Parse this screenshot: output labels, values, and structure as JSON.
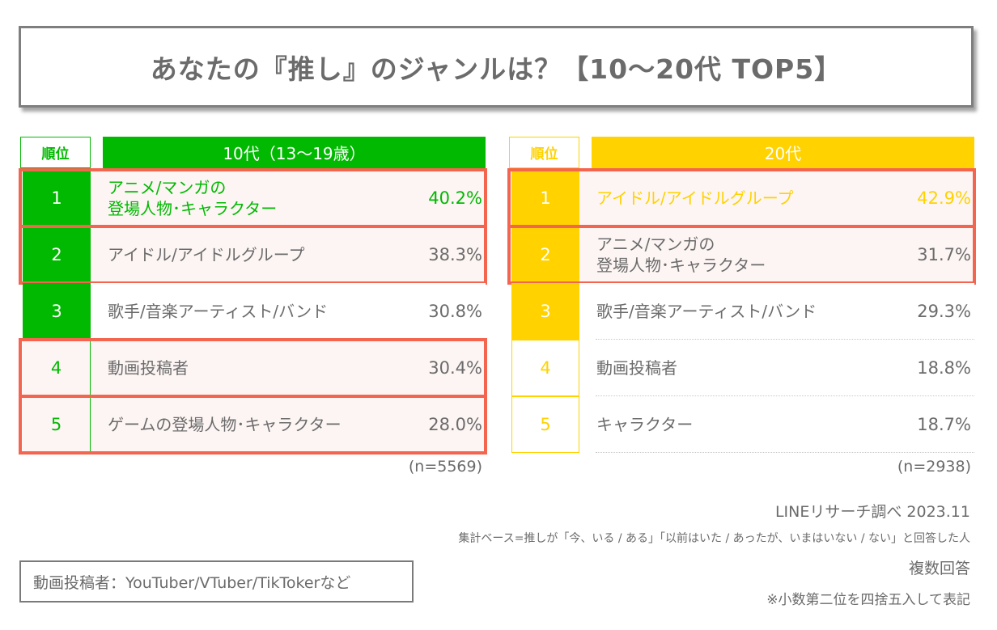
{
  "title": "あなたの『推し』のジャンルは？【10～20代 TOP5】",
  "colors": {
    "teens_accent": "#00b900",
    "twenties_accent": "#ffd200",
    "highlight_border": "#f4654f",
    "highlight_fill": "#fdf5f4",
    "text": "#6b6b6b"
  },
  "chart_data": {
    "type": "table",
    "title": "あなたの『推し』のジャンルは？【10～20代 TOP5】",
    "tables": [
      {
        "rank_header": "順位",
        "group_header": "10代（13～19歳）",
        "n_label": "(n=5569)",
        "rows": [
          {
            "rank": "1",
            "label": "アニメ/マンガの\n登場人物･キャラクター",
            "value": 40.2,
            "value_label": "40.2%",
            "highlighted": true
          },
          {
            "rank": "2",
            "label": "アイドル/アイドルグループ",
            "value": 38.3,
            "value_label": "38.3%",
            "highlighted": true
          },
          {
            "rank": "3",
            "label": "歌手/音楽アーティスト/バンド",
            "value": 30.8,
            "value_label": "30.8%",
            "highlighted": false
          },
          {
            "rank": "4",
            "label": "動画投稿者",
            "value": 30.4,
            "value_label": "30.4%",
            "highlighted": true
          },
          {
            "rank": "5",
            "label": "ゲームの登場人物･キャラクター",
            "value": 28.0,
            "value_label": "28.0%",
            "highlighted": true
          }
        ]
      },
      {
        "rank_header": "順位",
        "group_header": "20代",
        "n_label": "(n=2938)",
        "rows": [
          {
            "rank": "1",
            "label": "アイドル/アイドルグループ",
            "value": 42.9,
            "value_label": "42.9%",
            "highlighted": true
          },
          {
            "rank": "2",
            "label": "アニメ/マンガの\n登場人物･キャラクター",
            "value": 31.7,
            "value_label": "31.7%",
            "highlighted": true
          },
          {
            "rank": "3",
            "label": "歌手/音楽アーティスト/バンド",
            "value": 29.3,
            "value_label": "29.3%",
            "highlighted": false
          },
          {
            "rank": "4",
            "label": "動画投稿者",
            "value": 18.8,
            "value_label": "18.8%",
            "highlighted": false
          },
          {
            "rank": "5",
            "label": "キャラクター",
            "value": 18.7,
            "value_label": "18.7%",
            "highlighted": false
          }
        ]
      }
    ]
  },
  "footer": {
    "source": "LINEリサーチ調べ 2023.11",
    "base": "集計ベース=推しが「今、いる / ある」「以前はいた / あったが、いまはいない / ない」と回答した人",
    "multiple": "複数回答",
    "rounding": "※小数第二位を四捨五入して表記"
  },
  "note": "動画投稿者：YouTuber/VTuber/TikTokerなど"
}
